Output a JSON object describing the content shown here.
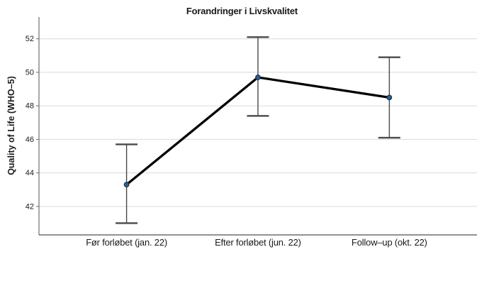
{
  "chart_data": {
    "type": "line",
    "title": "Forandringer i Livskvalitet",
    "ylabel": "Quality of Life (WHO–5)",
    "xlabel": "",
    "categories": [
      "Før forløbet (jan. 22)",
      "Efter forløbet (jun. 22)",
      "Follow–up (okt. 22)"
    ],
    "series": [
      {
        "name": "Quality of Life (WHO-5)",
        "values": [
          43.3,
          49.7,
          48.5
        ],
        "error_low": [
          41.0,
          47.4,
          46.1
        ],
        "error_high": [
          45.7,
          52.1,
          50.9
        ]
      }
    ],
    "yticks": [
      42,
      44,
      46,
      48,
      50,
      52
    ],
    "ylim": [
      40.3,
      53.3
    ],
    "grid": true,
    "legend": "none",
    "colors": {
      "line": "#000000",
      "marker_fill": "#2e6095",
      "marker_stroke": "#14304e",
      "error_bar": "#4a4a4a",
      "gridline": "#d9d9d9",
      "axis": "#6e6e6e",
      "text": "#1a1a1a"
    }
  }
}
